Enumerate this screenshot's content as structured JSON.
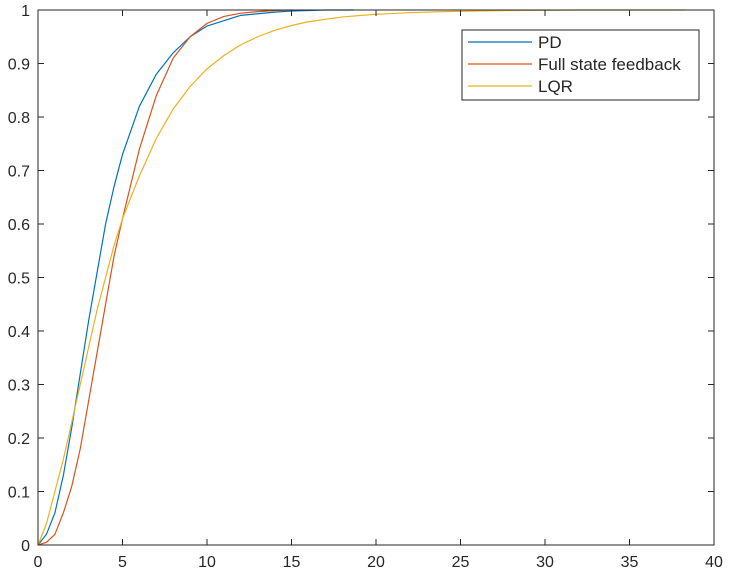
{
  "chart_data": {
    "type": "line",
    "title": "",
    "xlabel": "",
    "ylabel": "",
    "xlim": [
      0,
      40
    ],
    "ylim": [
      0,
      1
    ],
    "x_ticks": [
      "0",
      "5",
      "10",
      "15",
      "20",
      "25",
      "30",
      "35",
      "40"
    ],
    "y_ticks": [
      "0",
      "0.1",
      "0.2",
      "0.3",
      "0.4",
      "0.5",
      "0.6",
      "0.7",
      "0.8",
      "0.9",
      "1"
    ],
    "grid": false,
    "box": true,
    "legend_position": "top-right",
    "series": [
      {
        "name": "PD",
        "color": "#0072BD",
        "x": [
          0,
          0.5,
          1,
          1.5,
          2,
          2.5,
          3,
          3.5,
          4,
          4.5,
          5,
          6,
          7,
          8,
          9,
          10,
          11,
          12,
          13,
          14,
          15,
          16,
          17,
          18,
          18.7
        ],
        "y": [
          0,
          0.02,
          0.06,
          0.13,
          0.22,
          0.32,
          0.42,
          0.51,
          0.6,
          0.67,
          0.73,
          0.82,
          0.88,
          0.92,
          0.95,
          0.97,
          0.98,
          0.99,
          0.993,
          0.996,
          0.998,
          0.999,
          1.0,
          1.0,
          1.0
        ]
      },
      {
        "name": "Full state feedback",
        "color": "#D95319",
        "x": [
          0,
          0.5,
          1,
          1.5,
          2,
          2.5,
          3,
          3.5,
          4,
          4.5,
          5,
          6,
          7,
          8,
          9,
          10,
          11,
          12,
          13,
          14,
          15
        ],
        "y": [
          0,
          0.005,
          0.02,
          0.06,
          0.11,
          0.18,
          0.27,
          0.36,
          0.45,
          0.54,
          0.61,
          0.74,
          0.84,
          0.91,
          0.95,
          0.975,
          0.988,
          0.994,
          0.997,
          0.999,
          1.0
        ]
      },
      {
        "name": "LQR",
        "color": "#EDB120",
        "x": [
          0,
          0.5,
          1,
          1.5,
          2,
          2.5,
          3,
          3.5,
          4,
          4.5,
          5,
          6,
          7,
          8,
          9,
          10,
          11,
          12,
          13,
          14,
          15,
          16,
          18,
          20,
          22,
          24,
          26,
          28,
          30,
          32,
          34,
          36,
          38.3
        ],
        "y": [
          0,
          0.04,
          0.1,
          0.16,
          0.23,
          0.3,
          0.37,
          0.44,
          0.5,
          0.56,
          0.61,
          0.69,
          0.76,
          0.815,
          0.857,
          0.89,
          0.915,
          0.935,
          0.95,
          0.962,
          0.971,
          0.978,
          0.987,
          0.992,
          0.995,
          0.997,
          0.998,
          0.999,
          0.9995,
          1.0,
          1.0,
          1.0,
          1.0
        ]
      }
    ]
  }
}
